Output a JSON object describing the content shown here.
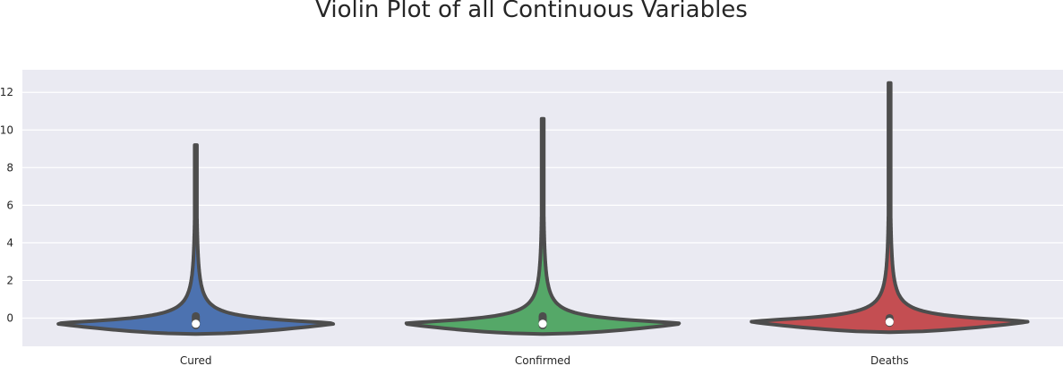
{
  "chart_data": {
    "type": "violin",
    "title": "Violin Plot of all Continuous Variables",
    "xlabel": "",
    "ylabel": "",
    "categories": [
      "Cured",
      "Confirmed",
      "Deaths"
    ],
    "ylim": [
      -1.5,
      13.2
    ],
    "yticks": [
      0,
      2,
      4,
      6,
      8,
      10,
      12
    ],
    "grid": true,
    "violins": [
      {
        "name": "Cured",
        "color": "#4c72b0",
        "min": -0.85,
        "max": 9.2,
        "median": -0.3,
        "q1": -0.38,
        "q3": 0.1
      },
      {
        "name": "Confirmed",
        "color": "#55a868",
        "min": -0.85,
        "max": 10.6,
        "median": -0.3,
        "q1": -0.38,
        "q3": 0.1
      },
      {
        "name": "Deaths",
        "color": "#c44e52",
        "min": -0.75,
        "max": 12.5,
        "median": -0.2,
        "q1": -0.25,
        "q3": 0.0
      }
    ],
    "background": "#eaeaf2",
    "outline_color": "#4d4d4d"
  }
}
